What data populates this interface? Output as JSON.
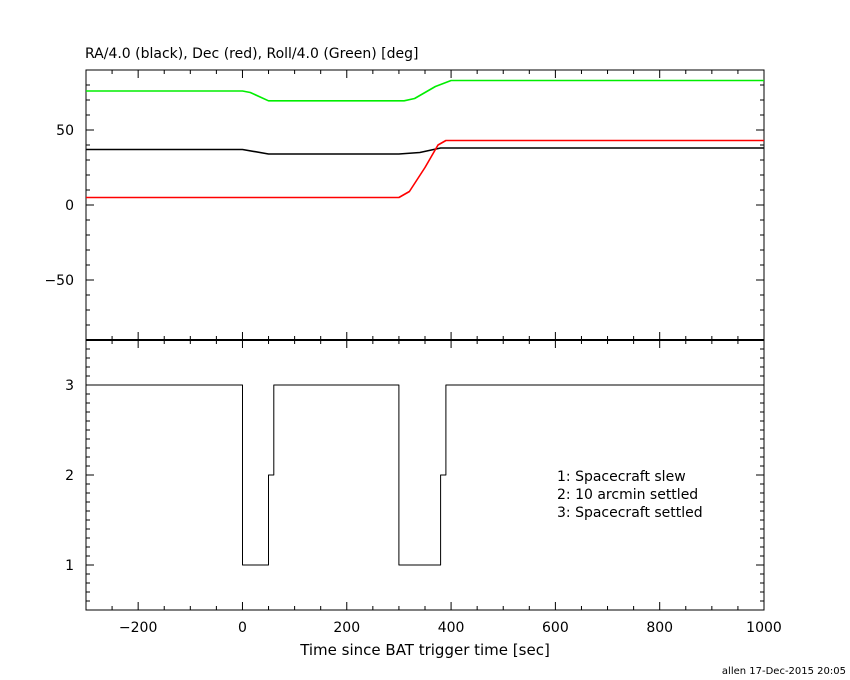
{
  "title": "RA/4.0 (black), Dec (red), Roll/4.0 (Green) [deg]",
  "footer": "allen 17-Dec-2015 20:05",
  "chart_data": [
    {
      "type": "line",
      "title": "RA/4.0 (black), Dec (red), Roll/4.0 (Green) [deg]",
      "xlim": [
        -300,
        1000
      ],
      "ylim": [
        -90,
        90
      ],
      "x_ticks": [
        -200,
        0,
        200,
        400,
        600,
        800,
        1000
      ],
      "y_ticks": [
        -50,
        0,
        50
      ],
      "colors": {
        "ra": "#000000",
        "dec": "#ff0000",
        "roll": "#00ee00"
      },
      "series": [
        {
          "key": "ra",
          "color": "#000000",
          "points": [
            [
              -300,
              37
            ],
            [
              0,
              37
            ],
            [
              50,
              34
            ],
            [
              300,
              34
            ],
            [
              340,
              35
            ],
            [
              380,
              38
            ],
            [
              1000,
              38
            ]
          ]
        },
        {
          "key": "dec",
          "color": "#ff0000",
          "points": [
            [
              -300,
              5
            ],
            [
              0,
              5
            ],
            [
              300,
              5
            ],
            [
              320,
              9
            ],
            [
              350,
              25
            ],
            [
              375,
              40
            ],
            [
              390,
              43
            ],
            [
              1000,
              43
            ]
          ]
        },
        {
          "key": "roll",
          "color": "#00ee00",
          "points": [
            [
              -300,
              76
            ],
            [
              0,
              76
            ],
            [
              15,
              75
            ],
            [
              50,
              69.5
            ],
            [
              310,
              69.5
            ],
            [
              330,
              71
            ],
            [
              370,
              79
            ],
            [
              400,
              83
            ],
            [
              1000,
              83
            ]
          ]
        }
      ]
    },
    {
      "type": "line",
      "xlabel": "Time since BAT trigger time [sec]",
      "xlim": [
        -300,
        1000
      ],
      "ylim": [
        0.5,
        3.5
      ],
      "x_ticks": [
        -200,
        0,
        200,
        400,
        600,
        800,
        1000
      ],
      "y_ticks": [
        1,
        2,
        3
      ],
      "legend": [
        "1: Spacecraft slew",
        "2: 10 arcmin settled",
        "3: Spacecraft settled"
      ],
      "legend_position": "lower-right",
      "series": [
        {
          "key": "state",
          "color": "#000000",
          "points": [
            [
              -300,
              3
            ],
            [
              0,
              3
            ],
            [
              0,
              1
            ],
            [
              50,
              1
            ],
            [
              50,
              2
            ],
            [
              60,
              2
            ],
            [
              60,
              3
            ],
            [
              300,
              3
            ],
            [
              300,
              1
            ],
            [
              380,
              1
            ],
            [
              380,
              2
            ],
            [
              390,
              2
            ],
            [
              390,
              3
            ],
            [
              1000,
              3
            ]
          ]
        }
      ]
    }
  ]
}
